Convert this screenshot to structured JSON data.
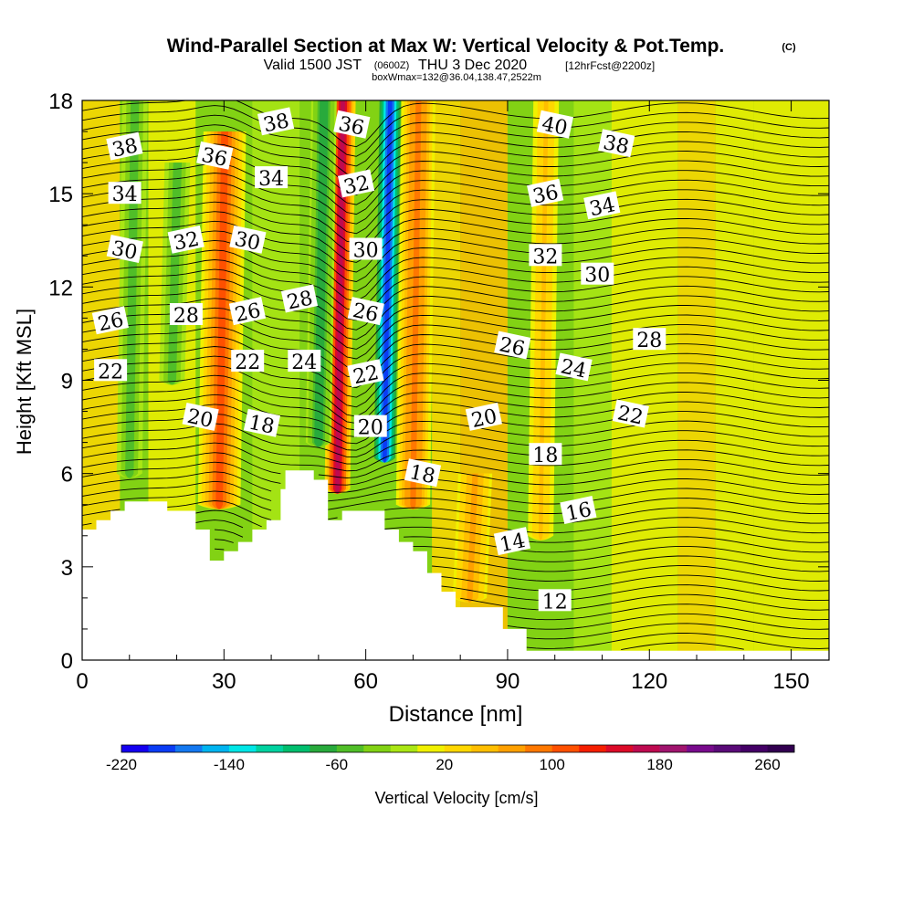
{
  "header": {
    "title": "Wind-Parallel Section at Max W: Vertical Velocity & Pot.Temp.",
    "copyright": "(C)",
    "valid_prefix": "Valid 1500 JST",
    "valid_utc": "(0600Z)",
    "valid_date": "THU 3 Dec 2020",
    "forecast": "[12hrFcst@2200z]",
    "boxinfo": "boxWmax=132@36.04,138.47,2522m"
  },
  "chart_data": {
    "type": "heatmap",
    "title": "Wind-Parallel Section at Max W: Vertical Velocity & Pot.Temp.",
    "xlabel": "Distance [nm]",
    "ylabel": "Height [Kft MSL]",
    "xlim": [
      0,
      158
    ],
    "ylim": [
      0,
      18
    ],
    "xticks": [
      0,
      30,
      60,
      90,
      120,
      150
    ],
    "yticks": [
      0,
      3,
      6,
      9,
      12,
      15,
      18
    ],
    "colorbar": {
      "label": "Vertical Velocity [cm/s]",
      "min": -220,
      "max": 280,
      "step": 20,
      "tick_labels": [
        "-220",
        "-140",
        "-60",
        "20",
        "100",
        "180",
        "260"
      ],
      "tick_values": [
        -220,
        -140,
        -60,
        20,
        100,
        180,
        260
      ],
      "colors": [
        "#1400f0",
        "#0a3cf5",
        "#1478f0",
        "#00b4f0",
        "#00e6e6",
        "#00d2a0",
        "#00be6e",
        "#28aa3c",
        "#50be28",
        "#82d214",
        "#aae614",
        "#f0f000",
        "#ffd700",
        "#ffbe00",
        "#ffa000",
        "#ff7800",
        "#ff5000",
        "#f51e00",
        "#dc0a28",
        "#be0a50",
        "#a0146e",
        "#780a8c",
        "#5a0a78",
        "#440066",
        "#320050"
      ]
    },
    "velocity_features": [
      {
        "x": 54,
        "top": 18,
        "bottom": 5.5,
        "w": 170,
        "width": 3
      },
      {
        "x": 64,
        "top": 18,
        "bottom": 6.5,
        "w": -200,
        "width": 3
      },
      {
        "x": 50,
        "top": 18,
        "bottom": 7.0,
        "w": -80,
        "width": 3
      },
      {
        "x": 70,
        "top": 18,
        "bottom": 5.0,
        "w": 90,
        "width": 4
      },
      {
        "x": 29,
        "top": 17.0,
        "bottom": 5.0,
        "w": 100,
        "width": 5
      },
      {
        "x": 97,
        "top": 18,
        "bottom": 4.0,
        "w": 40,
        "width": 3
      },
      {
        "x": 82,
        "top": 6,
        "bottom": 2.0,
        "w": 60,
        "width": 4
      },
      {
        "x": 10,
        "top": 18,
        "bottom": 6,
        "w": -60,
        "width": 3
      },
      {
        "x": 19,
        "top": 16,
        "bottom": 9,
        "w": -50,
        "width": 3
      }
    ],
    "terrain": [
      [
        0,
        4.2
      ],
      [
        3,
        4.2
      ],
      [
        3,
        4.5
      ],
      [
        6,
        4.5
      ],
      [
        6,
        4.8
      ],
      [
        9,
        4.8
      ],
      [
        9,
        5.1
      ],
      [
        18,
        5.1
      ],
      [
        18,
        4.8
      ],
      [
        24,
        4.8
      ],
      [
        24,
        4.2
      ],
      [
        27,
        4.2
      ],
      [
        27,
        3.2
      ],
      [
        30,
        3.2
      ],
      [
        30,
        3.5
      ],
      [
        33,
        3.5
      ],
      [
        33,
        3.8
      ],
      [
        36,
        3.8
      ],
      [
        36,
        4.2
      ],
      [
        39,
        4.2
      ],
      [
        39,
        4.5
      ],
      [
        42,
        4.5
      ],
      [
        42,
        5.5
      ],
      [
        43,
        5.5
      ],
      [
        43,
        6.1
      ],
      [
        49,
        6.1
      ],
      [
        49,
        5.8
      ],
      [
        52,
        5.8
      ],
      [
        52,
        4.5
      ],
      [
        55,
        4.5
      ],
      [
        55,
        4.8
      ],
      [
        64,
        4.8
      ],
      [
        64,
        4.2
      ],
      [
        67,
        4.2
      ],
      [
        67,
        3.8
      ],
      [
        70,
        3.8
      ],
      [
        70,
        3.5
      ],
      [
        73,
        3.5
      ],
      [
        73,
        2.8
      ],
      [
        76,
        2.8
      ],
      [
        76,
        2.2
      ],
      [
        79,
        2.2
      ],
      [
        79,
        1.7
      ],
      [
        89,
        1.7
      ],
      [
        89,
        1.0
      ],
      [
        94,
        1.0
      ],
      [
        94,
        0.3
      ],
      [
        158,
        0.3
      ]
    ],
    "isentrope_labels": [
      {
        "text": "38",
        "x": 9,
        "y": 16.5
      },
      {
        "text": "34",
        "x": 9,
        "y": 15.0
      },
      {
        "text": "30",
        "x": 9,
        "y": 13.2
      },
      {
        "text": "26",
        "x": 6,
        "y": 10.9
      },
      {
        "text": "22",
        "x": 6,
        "y": 9.3
      },
      {
        "text": "36",
        "x": 28,
        "y": 16.2
      },
      {
        "text": "32",
        "x": 22,
        "y": 13.5
      },
      {
        "text": "28",
        "x": 22,
        "y": 11.1
      },
      {
        "text": "20",
        "x": 25,
        "y": 7.8
      },
      {
        "text": "38",
        "x": 41,
        "y": 17.3
      },
      {
        "text": "34",
        "x": 40,
        "y": 15.5
      },
      {
        "text": "30",
        "x": 35,
        "y": 13.5
      },
      {
        "text": "26",
        "x": 35,
        "y": 11.2
      },
      {
        "text": "22",
        "x": 35,
        "y": 9.6
      },
      {
        "text": "18",
        "x": 38,
        "y": 7.6
      },
      {
        "text": "28",
        "x": 46,
        "y": 11.6
      },
      {
        "text": "24",
        "x": 47,
        "y": 9.6
      },
      {
        "text": "36",
        "x": 57,
        "y": 17.2
      },
      {
        "text": "32",
        "x": 58,
        "y": 15.3
      },
      {
        "text": "30",
        "x": 60,
        "y": 13.2
      },
      {
        "text": "26",
        "x": 60,
        "y": 11.2
      },
      {
        "text": "22",
        "x": 60,
        "y": 9.2
      },
      {
        "text": "20",
        "x": 61,
        "y": 7.5
      },
      {
        "text": "18",
        "x": 72,
        "y": 6.0
      },
      {
        "text": "14",
        "x": 91,
        "y": 3.8
      },
      {
        "text": "12",
        "x": 100,
        "y": 1.9
      },
      {
        "text": "40",
        "x": 100,
        "y": 17.2
      },
      {
        "text": "36",
        "x": 98,
        "y": 15.0
      },
      {
        "text": "32",
        "x": 98,
        "y": 13.0
      },
      {
        "text": "26",
        "x": 91,
        "y": 10.1
      },
      {
        "text": "20",
        "x": 85,
        "y": 7.8
      },
      {
        "text": "18",
        "x": 98,
        "y": 6.6
      },
      {
        "text": "38",
        "x": 113,
        "y": 16.6
      },
      {
        "text": "34",
        "x": 110,
        "y": 14.6
      },
      {
        "text": "30",
        "x": 109,
        "y": 12.4
      },
      {
        "text": "24",
        "x": 104,
        "y": 9.4
      },
      {
        "text": "16",
        "x": 105,
        "y": 4.8
      },
      {
        "text": "28",
        "x": 120,
        "y": 10.3
      },
      {
        "text": "22",
        "x": 116,
        "y": 7.9
      }
    ],
    "isentropes": {
      "levels_from": 12,
      "levels_to": 40,
      "step": 0.5
    }
  }
}
